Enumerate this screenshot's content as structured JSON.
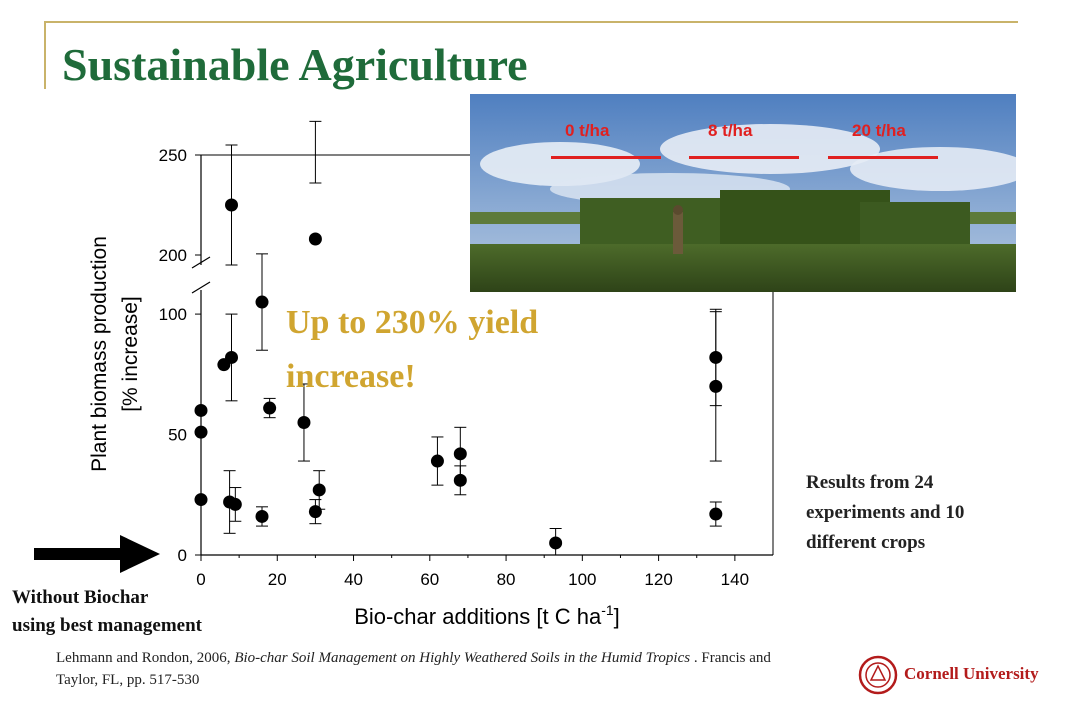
{
  "slide": {
    "title": "Sustainable Agriculture",
    "callout_line1": "Up to 230% yield",
    "callout_line2": "increase!",
    "results_text": "Results from 24 experiments and 10 different crops",
    "without_line1": "Without Biochar",
    "without_line2": "using best management",
    "citation_authors": "Lehmann and Rondon, 2006, ",
    "citation_title": "Bio-char Soil Management on Highly Weathered Soils in the Humid Tropics",
    "citation_rest": " . Francis and Taylor, FL, pp. 517-530",
    "logo_text": "Cornell University",
    "accent_green": "#1f6b3a",
    "accent_gold": "#d0a530",
    "accent_red": "#e02020"
  },
  "photo": {
    "label_0": "0 t/ha",
    "label_8": "8 t/ha",
    "label_20": "20 t/ha"
  },
  "chart_data": {
    "type": "scatter",
    "xlabel": "Bio-char additions [t C ha",
    "xlabel_sup": "-1",
    "xlabel_end": "]",
    "ylabel_line1": "Plant biomass production",
    "ylabel_line2": "[% increase]",
    "xlim": [
      0,
      150
    ],
    "ylim_lower": [
      0,
      110
    ],
    "ylim_upper": [
      195,
      250
    ],
    "x_ticks": [
      0,
      20,
      40,
      60,
      80,
      100,
      120,
      140
    ],
    "y_ticks_lower": [
      0,
      50,
      100
    ],
    "y_ticks_upper": [
      200,
      250
    ],
    "broken_axis": true,
    "grid": false,
    "points": [
      {
        "x": 0,
        "y": 60
      },
      {
        "x": 0,
        "y": 51
      },
      {
        "x": 0,
        "y": 23
      },
      {
        "x": 6,
        "y": 79
      },
      {
        "x": 7.5,
        "y": 22,
        "err": 13
      },
      {
        "x": 8,
        "y": 82,
        "err": 18
      },
      {
        "x": 8,
        "y": 225,
        "err": 30
      },
      {
        "x": 9,
        "y": 21,
        "err": 7
      },
      {
        "x": 16,
        "y": 105,
        "err": 20
      },
      {
        "x": 16,
        "y": 16,
        "err": 4
      },
      {
        "x": 18,
        "y": 61,
        "err": 4
      },
      {
        "x": 27,
        "y": 55,
        "err": 16
      },
      {
        "x": 30,
        "y": 208,
        "err": 28
      },
      {
        "x": 30,
        "y": 18,
        "err": 5
      },
      {
        "x": 31,
        "y": 27,
        "err": 8
      },
      {
        "x": 62,
        "y": 39,
        "err": 10
      },
      {
        "x": 68,
        "y": 42,
        "err": 11
      },
      {
        "x": 68,
        "y": 31,
        "err": 6
      },
      {
        "x": 93,
        "y": 5,
        "err": 6
      },
      {
        "x": 135,
        "y": 82,
        "err": 20
      },
      {
        "x": 135,
        "y": 70,
        "err": 31
      },
      {
        "x": 135,
        "y": 17,
        "err": 5
      }
    ]
  }
}
